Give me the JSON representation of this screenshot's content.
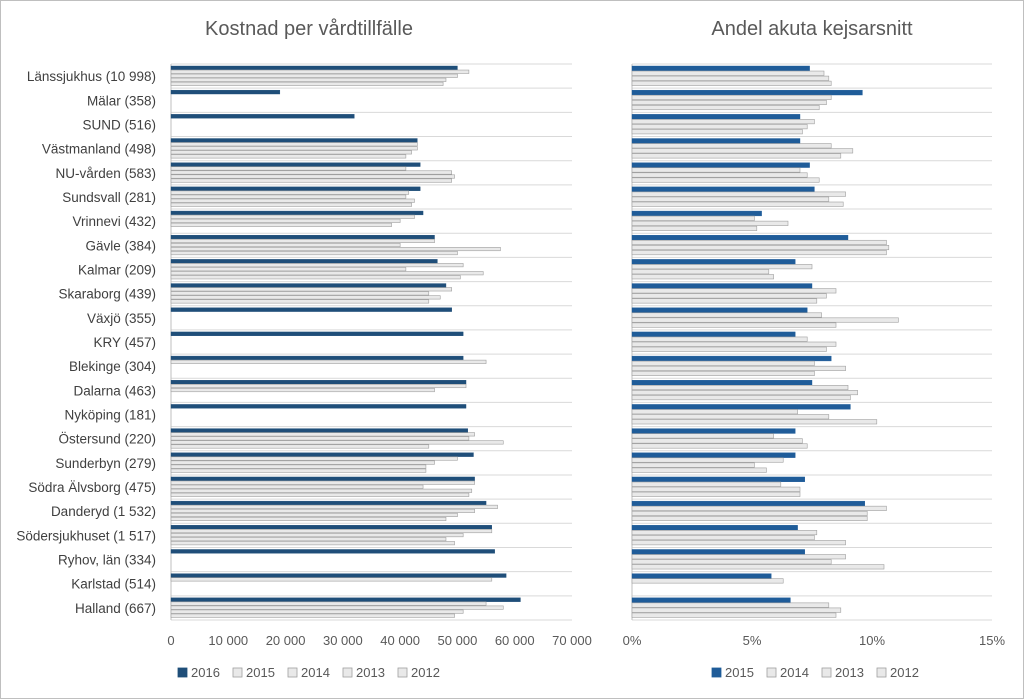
{
  "colors": {
    "accent_2016": "#1f4e79",
    "accent_2015": "#1f5c99",
    "past_fill": "#e9e9e9",
    "past_stroke": "#9f9f9f",
    "grid": "#d9d9d9"
  },
  "chart_data": [
    {
      "type": "bar",
      "orientation": "horizontal",
      "title": "Kostnad per vårdtillfälle",
      "categories": [
        "Länssjukhus (10 998)",
        "Mälar (358)",
        "SUND (516)",
        "Västmanland (498)",
        "NU-vården (583)",
        "Sundsvall (281)",
        "Vrinnevi (432)",
        "Gävle (384)",
        "Kalmar (209)",
        "Skaraborg (439)",
        "Växjö (355)",
        "KRY (457)",
        "Blekinge (304)",
        "Dalarna (463)",
        "Nyköping (181)",
        "Östersund (220)",
        "Sunderbyn (279)",
        "Södra Älvsborg (475)",
        "Danderyd (1 532)",
        "Södersjukhuset (1 517)",
        "Ryhov, län (334)",
        "Karlstad (514)",
        "Halland (667)"
      ],
      "series": [
        {
          "name": "2016",
          "values": [
            50000,
            19000,
            32000,
            43000,
            43500,
            43500,
            44000,
            46000,
            46500,
            48000,
            49000,
            51000,
            51000,
            51500,
            51500,
            51800,
            52800,
            53000,
            55000,
            56000,
            56500,
            58500,
            61000
          ]
        },
        {
          "name": "2015",
          "values": [
            52000,
            null,
            null,
            43000,
            41000,
            41500,
            42500,
            46000,
            51000,
            49000,
            null,
            null,
            55000,
            51500,
            null,
            53000,
            50000,
            53000,
            57000,
            56000,
            null,
            56000,
            55000
          ]
        },
        {
          "name": "2014",
          "values": [
            50000,
            null,
            null,
            43000,
            49000,
            41000,
            40000,
            40000,
            41000,
            45000,
            null,
            null,
            null,
            46000,
            null,
            52000,
            46000,
            44000,
            53000,
            51000,
            null,
            null,
            58000
          ]
        },
        {
          "name": "2013",
          "values": [
            48000,
            null,
            null,
            42000,
            49500,
            42500,
            38500,
            57500,
            54500,
            47000,
            null,
            null,
            null,
            null,
            null,
            58000,
            44500,
            52500,
            50000,
            48000,
            null,
            null,
            51000
          ]
        },
        {
          "name": "2012",
          "values": [
            47500,
            null,
            null,
            41000,
            49000,
            42000,
            null,
            50000,
            50500,
            45000,
            null,
            null,
            null,
            null,
            null,
            45000,
            44500,
            52000,
            48000,
            49500,
            null,
            null,
            49500
          ]
        }
      ],
      "x_ticks": [
        "0",
        "10 000",
        "20 000",
        "30 000",
        "40 000",
        "50 000",
        "60 000",
        "70 000"
      ],
      "xlim": [
        0,
        70000
      ],
      "legend": [
        "2016",
        "2015",
        "2014",
        "2013",
        "2012"
      ],
      "legend_position": "bottom",
      "grid": true
    },
    {
      "type": "bar",
      "orientation": "horizontal",
      "title": "Andel akuta kejsarsnitt",
      "categories": [
        "Länssjukhus (10 998)",
        "Mälar (358)",
        "SUND (516)",
        "Västmanland (498)",
        "NU-vården (583)",
        "Sundsvall (281)",
        "Vrinnevi (432)",
        "Gävle (384)",
        "Kalmar (209)",
        "Skaraborg (439)",
        "Växjö (355)",
        "KRY (457)",
        "Blekinge (304)",
        "Dalarna (463)",
        "Nyköping (181)",
        "Östersund (220)",
        "Sunderbyn (279)",
        "Södra Älvsborg (475)",
        "Danderyd (1 532)",
        "Södersjukhuset (1 517)",
        "Ryhov, län (334)",
        "Karlstad (514)",
        "Halland (667)"
      ],
      "series": [
        {
          "name": "2015",
          "values": [
            7.4,
            9.6,
            7.0,
            7.0,
            7.4,
            7.6,
            5.4,
            9.0,
            6.8,
            7.5,
            7.3,
            6.8,
            8.3,
            7.5,
            9.1,
            6.8,
            6.8,
            7.2,
            9.7,
            6.9,
            7.2,
            5.8,
            6.6
          ]
        },
        {
          "name": "2014",
          "values": [
            8.0,
            8.3,
            7.6,
            8.3,
            7.0,
            8.9,
            5.1,
            10.6,
            7.5,
            8.5,
            7.9,
            7.3,
            7.6,
            9.0,
            6.9,
            5.9,
            6.3,
            6.2,
            10.6,
            7.7,
            8.9,
            6.3,
            8.2
          ]
        },
        {
          "name": "2013",
          "values": [
            8.2,
            8.1,
            7.3,
            9.2,
            7.3,
            8.2,
            6.5,
            10.7,
            5.7,
            8.1,
            11.1,
            8.5,
            8.9,
            9.4,
            8.2,
            7.1,
            5.1,
            7.0,
            9.8,
            7.6,
            8.3,
            null,
            8.7
          ]
        },
        {
          "name": "2012",
          "values": [
            8.3,
            7.8,
            7.1,
            8.7,
            7.8,
            8.8,
            5.2,
            10.6,
            5.9,
            7.7,
            8.5,
            8.1,
            7.6,
            9.1,
            10.2,
            7.3,
            5.6,
            7.0,
            9.8,
            8.9,
            10.5,
            null,
            8.5
          ]
        }
      ],
      "x_ticks": [
        "0%",
        "5%",
        "10%",
        "15%"
      ],
      "xlim": [
        0,
        15
      ],
      "legend": [
        "2015",
        "2014",
        "2013",
        "2012"
      ],
      "legend_position": "bottom",
      "grid": true
    }
  ]
}
